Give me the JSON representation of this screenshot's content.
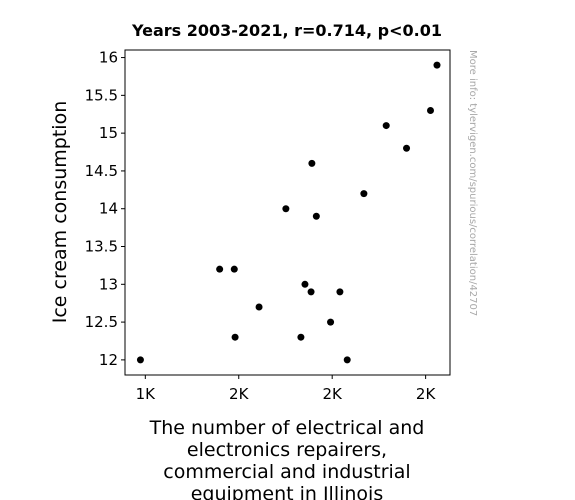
{
  "chart_data": {
    "type": "scatter",
    "title": "Years 2003-2021, r=0.714, p<0.01",
    "xlabel_lines": [
      "The number of electrical and",
      "electronics repairers,",
      "commercial and industrial",
      "equipment in Illinois"
    ],
    "ylabel": "Ice cream consumption",
    "side_note": "More info: tylervigen.com/spurious/correlation/42707",
    "xlim": [
      1330,
      2130
    ],
    "ylim": [
      11.8,
      16.1
    ],
    "x_ticks": [
      {
        "value": 1380,
        "label": "1K"
      },
      {
        "value": 1610,
        "label": "2K"
      },
      {
        "value": 1840,
        "label": "2K"
      },
      {
        "value": 2070,
        "label": "2K"
      }
    ],
    "y_ticks": [
      {
        "value": 12,
        "label": "12"
      },
      {
        "value": 12.5,
        "label": "12.5"
      },
      {
        "value": 13,
        "label": "13"
      },
      {
        "value": 13.5,
        "label": "13.5"
      },
      {
        "value": 14,
        "label": "14"
      },
      {
        "value": 14.5,
        "label": "14.5"
      },
      {
        "value": 15,
        "label": "15"
      },
      {
        "value": 15.5,
        "label": "15.5"
      },
      {
        "value": 16,
        "label": "16"
      }
    ],
    "points": [
      {
        "x": 1368,
        "y": 12.0
      },
      {
        "x": 1563,
        "y": 13.2
      },
      {
        "x": 1599,
        "y": 13.2
      },
      {
        "x": 1601,
        "y": 12.3
      },
      {
        "x": 1660,
        "y": 12.7
      },
      {
        "x": 1726,
        "y": 14.0
      },
      {
        "x": 1763,
        "y": 12.3
      },
      {
        "x": 1773,
        "y": 13.0
      },
      {
        "x": 1788,
        "y": 12.9
      },
      {
        "x": 1790,
        "y": 14.6
      },
      {
        "x": 1801,
        "y": 13.9
      },
      {
        "x": 1836,
        "y": 12.5
      },
      {
        "x": 1859,
        "y": 12.9
      },
      {
        "x": 1877,
        "y": 12.0
      },
      {
        "x": 1918,
        "y": 14.2
      },
      {
        "x": 1973,
        "y": 15.1
      },
      {
        "x": 2023,
        "y": 14.8
      },
      {
        "x": 2082,
        "y": 15.3
      },
      {
        "x": 2098,
        "y": 15.9
      }
    ],
    "grid": false,
    "marker_color": "#000000"
  }
}
